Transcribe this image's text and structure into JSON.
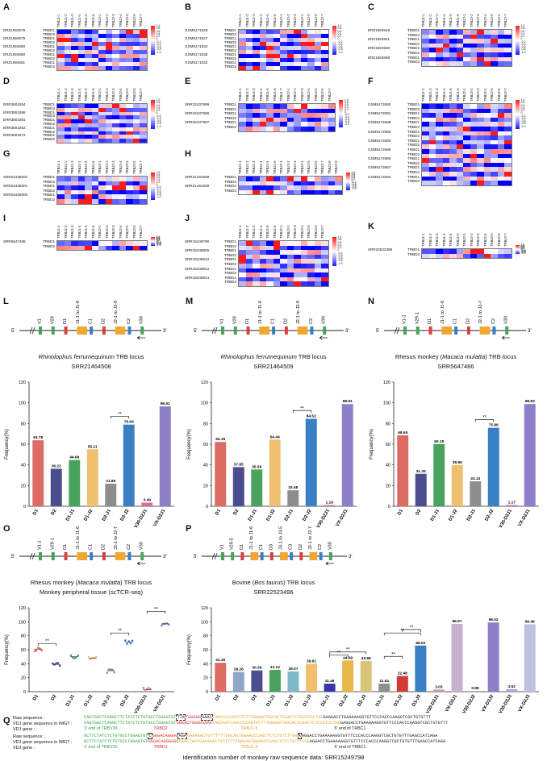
{
  "heatmaps": [
    {
      "id": "A",
      "samples": [
        "ERZ1694578",
        "ERZ1694579",
        "ERZ1694580",
        "ERZ1694580",
        "ERZ1694581"
      ],
      "columns": [
        "TRBJ1-1",
        "TRBJ1-2",
        "TRBJ1-3",
        "TRBJ1-4",
        "TRBJ1-5",
        "TRBJ1-6",
        "TRBJ2-1",
        "TRBJ2-2",
        "TRBJ2-3",
        "TRBJ2-4",
        "TRBJ2-5",
        "TRBJ2-6",
        "TRBJ2-7"
      ]
    },
    {
      "id": "B",
      "samples": [
        "GSM5171626",
        "GSM5171627",
        "GSM5171634",
        "GSM5171635",
        "GSM5171642"
      ],
      "columns": [
        "TRBJ1-1",
        "TRBJ1-2",
        "TRBJ1-3",
        "TRBJ1-4",
        "TRBJ1-5",
        "TRBJ1-6",
        "TRBJ2-1",
        "TRBJ2-2",
        "TRBJ2-3",
        "TRBJ2-4",
        "TRBJ2-5",
        "TRBJ2-6",
        "TRBJ2-7"
      ]
    },
    {
      "id": "C",
      "samples": [
        "ERZ1694549",
        "ERZ1694551",
        "ERZ1694560",
        "ERZ1694569"
      ],
      "columns": [
        "TRBJ1-1",
        "TRBJ1-2",
        "TRBJ1-3",
        "TRBJ1-4",
        "TRBJ1-5",
        "TRBJ1-6",
        "TRBJ2-1",
        "TRBJ2-2",
        "TRBJ2-3",
        "TRBJ2-4",
        "TRBJ2-5",
        "TRBJ2-6",
        "TRBJ2-7"
      ]
    },
    {
      "id": "D",
      "samples": [
        "ERR3804264",
        "ERR3804268",
        "ERR3804281",
        "ERR3804262",
        "ERR3804272"
      ],
      "columns": [
        "TRBJ1-1",
        "TRBJ1-2",
        "TRBJ1-3",
        "TRBJ1-4",
        "TRBJ1-5",
        "TRBJ1-6",
        "TRBJ2-1",
        "TRBJ2-2",
        "TRBJ2-3",
        "TRBJ2-4",
        "TRBJ2-5",
        "TRBJ2-6",
        "TRBJ2-7"
      ]
    },
    {
      "id": "E",
      "samples": [
        "SRR22437999",
        "SRR22437998",
        "SRR22437997"
      ],
      "columns": [
        "TRBJ1-1",
        "TRBJ1-2",
        "TRBJ1-3",
        "TRBJ1-4",
        "TRBJ1-5",
        "TRBJ1-6",
        "TRBJ1-7",
        "TRBJ2-1",
        "TRBJ2-2",
        "TRBJ2-3",
        "TRBJ2-4",
        "TRBJ2-5",
        "TRBJ2-6",
        "TRBJ2-7"
      ]
    },
    {
      "id": "F",
      "samples": [
        "GSM5172690",
        "GSM5172691",
        "GSM5172689",
        "GSM5172688",
        "GSM5172689",
        "GSM5172696",
        "GSM5172686",
        "GSM5172687",
        "GSM5172694"
      ],
      "columns": [
        "TRBJ1-1",
        "TRBJ1-2",
        "TRBJ1-3",
        "TRBJ1-4",
        "TRBJ1-5",
        "TRBJ1-6",
        "TRBJ2-1",
        "TRBJ2-2",
        "TRBJ2-3",
        "TRBJ2-4",
        "TRBJ2-5",
        "TRBJ2-6",
        "TRBJ2-7"
      ]
    },
    {
      "id": "G",
      "samples": [
        "SRR22438002",
        "SRR22438001",
        "SRR22438000"
      ],
      "columns": [
        "TRBJ1-1",
        "TRBJ1-2",
        "TRBJ1-3",
        "TRBJ1-4",
        "TRBJ1-5",
        "TRBJ1-6",
        "TRBJ2-1",
        "TRBJ2-2",
        "TRBJ2-3",
        "TRBJ2-4",
        "TRBJ2-5",
        "TRBJ2-6",
        "TRBJ2-7"
      ]
    },
    {
      "id": "H",
      "samples": [
        "SRR21464508",
        "SRR21464509"
      ],
      "columns": [
        "TRBJ1-1",
        "TRBJ1-2",
        "TRBJ1-3",
        "TRBJ1-4",
        "TRBJ1-5",
        "TRBJ1-6",
        "TRBJ2-1",
        "TRBJ2-2",
        "TRBJ2-3",
        "TRBJ2-4",
        "TRBJ2-5",
        "TRBJ2-6",
        "TRBJ2-7",
        "TRBJ2-8",
        "TRBJ2-9"
      ]
    },
    {
      "id": "I",
      "samples": [
        "SRR5647486"
      ],
      "columns": [
        "TRBJ1-1",
        "TRBJ1-2",
        "TRBJ1-3",
        "TRBJ1-4",
        "TRBJ1-5",
        "TRBJ1-6",
        "TRBJ2-1",
        "TRBJ2-2",
        "TRBJ2-3",
        "TRBJ2-4",
        "TRBJ2-5",
        "TRBJ2-6",
        "TRBJ2-7"
      ]
    },
    {
      "id": "J",
      "samples": [
        "SRR15249798",
        "SRR15249806",
        "SRR15249810",
        "SRR15249812",
        "SRR15249814"
      ],
      "columns": [
        "TRBJ1-1",
        "TRBJ1-2",
        "TRBJ1-3",
        "TRBJ1-4",
        "TRBJ1-5",
        "TRBJ1-6",
        "TRBJ2-1",
        "TRBJ2-2",
        "TRBJ2-3",
        "TRBJ2-4",
        "TRBJ2-5",
        "TRBJ2-6",
        "TRBJ2-7"
      ]
    },
    {
      "id": "K",
      "samples": [
        "SRR22523496"
      ],
      "columns": [
        "TRBJ1-1",
        "TRBJ1-2",
        "TRBJ1-3",
        "TRBJ1-4",
        "TRBJ1-5",
        "TRBJ1-6",
        "TRBJ2-1",
        "TRBJ2-2",
        "TRBJ2-3",
        "TRBJ2-4",
        "TRBJ2-5",
        "TRBJ2-6",
        "TRBJ2-7"
      ]
    }
  ],
  "colorbar_ticks": [
    "1.0",
    "0.8",
    "0.6",
    "0.4",
    "0.2",
    "0",
    "-0.2",
    "-0.4",
    "-0.6",
    "-0.8",
    "-1.0"
  ],
  "panels": {
    "L": {
      "species": "Rhinolophus ferrumequinum",
      "suffix": "TRB locus",
      "sample": "SRR21464508",
      "locus": [
        "V1",
        "V29",
        "D1",
        "J1-1 to J1-6",
        "C1",
        "D2",
        "J2-1 to J2-9",
        "C2",
        "V30"
      ]
    },
    "M": {
      "species": "Rhinolophus ferrumequinum",
      "suffix": "TRB locus",
      "sample": "SRR21464509",
      "locus": [
        "V1",
        "V29",
        "D1",
        "J1-1 to J1-6",
        "C1",
        "D2",
        "J2-1 to J2-9",
        "C2",
        "V30"
      ]
    },
    "N": {
      "prefix": "Rhesus monkey (",
      "species": "Macaca mulatta",
      "suffix": ") TRB locus",
      "sample": "SRR5647486",
      "locus": [
        "V1-1",
        "V29-1",
        "D1",
        "J1-1 to J1-6",
        "C1",
        "D2",
        "J2-1 to J2-7",
        "C2",
        "V30"
      ]
    },
    "O": {
      "prefix": "Rhesus monkey (",
      "species": "Macaca mulatta",
      "suffix": ") TRB locus",
      "sample": "Monkey peripheral tissue (scTCR-seq)",
      "locus": [
        "V1-1",
        "V29-1",
        "D1",
        "J1-1 to J1-6",
        "C1",
        "D2",
        "J2-1 to J2-7",
        "C2",
        "V30"
      ]
    },
    "P": {
      "prefix": "Bovine (",
      "species": "Bos taurus",
      "suffix": ") TRB locus",
      "sample": "SRR22523496",
      "locus": [
        "V1",
        "V29-5",
        "D1",
        "J1-1 to J1-6",
        "C1",
        "D3",
        "J3-1 to J3-5",
        "C3",
        "D2",
        "J2-1 to J2-7",
        "C2",
        "V30"
      ]
    }
  },
  "chart_data": [
    {
      "id": "L",
      "type": "bar",
      "ylabel": "Frequency(%)",
      "ylim": [
        0,
        120
      ],
      "categories": [
        "D1",
        "D2",
        "D1-J1",
        "D1-J2",
        "D2-J1",
        "D2-J2",
        "V30-D2J1",
        "VX-D2J1"
      ],
      "values": [
        63.78,
        36.22,
        44.69,
        55.11,
        21.86,
        78.94,
        3.49,
        96.51
      ],
      "colors": [
        "#dd6b66",
        "#4a4e8e",
        "#4aa35c",
        "#f0c070",
        "#8e8e8e",
        "#3a7fc4",
        "#d66fa6",
        "#8e7fc8"
      ],
      "significance": [
        {
          "from": 4,
          "to": 5,
          "label": "**"
        }
      ]
    },
    {
      "id": "M",
      "type": "bar",
      "ylabel": "Frequency(%)",
      "ylim": [
        0,
        120
      ],
      "categories": [
        "D1",
        "D2",
        "D1-J1",
        "D1-J2",
        "D2-J1",
        "D2-J2",
        "V30-D2J1",
        "VX-D2J1"
      ],
      "values": [
        62.15,
        37.85,
        35.56,
        64.44,
        15.48,
        84.52,
        1.19,
        98.81
      ],
      "colors": [
        "#dd6b66",
        "#4a4e8e",
        "#4aa35c",
        "#f0c070",
        "#8e8e8e",
        "#3a7fc4",
        "#d66fa6",
        "#8e7fc8"
      ],
      "significance": [
        {
          "from": 4,
          "to": 5,
          "label": "**"
        }
      ]
    },
    {
      "id": "N",
      "type": "bar",
      "ylabel": "Frequency(%)",
      "ylim": [
        0,
        120
      ],
      "categories": [
        "D1",
        "D2",
        "D1-J1",
        "D1-J2",
        "D2-J1",
        "D2-J2",
        "V30-D2J1",
        "VX-D2J1"
      ],
      "values": [
        68.65,
        31.35,
        60.15,
        39.85,
        24.14,
        75.86,
        1.17,
        98.83
      ],
      "colors": [
        "#dd6b66",
        "#4a4e8e",
        "#4aa35c",
        "#f0c070",
        "#8e8e8e",
        "#3a7fc4",
        "#d66fa6",
        "#8e7fc8"
      ],
      "significance": [
        {
          "from": 4,
          "to": 5,
          "label": "**"
        }
      ]
    },
    {
      "id": "O",
      "type": "scatter",
      "ylabel": "Frequency(%)",
      "ylim": [
        0,
        120
      ],
      "categories": [
        "D1",
        "D2",
        "D1-J1",
        "D1-J2",
        "D2-J1",
        "D2-J2",
        "V30-D2J1",
        "VX-D2J1"
      ],
      "means": [
        61,
        39,
        50,
        48,
        30,
        71,
        3,
        97
      ],
      "colors": [
        "#dd6b66",
        "#4a4e8e",
        "#4aa35c",
        "#f0c070",
        "#8e8e8e",
        "#3a7fc4",
        "#d66fa6",
        "#8e7fc8"
      ],
      "significance": [
        {
          "from": 0,
          "to": 1,
          "label": "**"
        },
        {
          "from": 4,
          "to": 5,
          "label": "**"
        },
        {
          "from": 6,
          "to": 7,
          "label": "**"
        }
      ]
    },
    {
      "id": "P",
      "type": "bar",
      "ylabel": "Frequency(%)",
      "ylim": [
        0,
        120
      ],
      "categories": [
        "D1",
        "D2",
        "D3",
        "D1-J1",
        "D1-J2",
        "D1-J3",
        "D2-J1",
        "D2-J2",
        "D2-J3",
        "D3-J1",
        "D3-J2",
        "D3-J3",
        "V30-D2J1",
        "VX-D2J1",
        "V30-D2J2",
        "VX-D2J2",
        "V30-D2J3",
        "VX-D2J3"
      ],
      "values": [
        41.35,
        28.26,
        30.39,
        31.12,
        29.07,
        39.81,
        11.46,
        44.69,
        43.86,
        11.51,
        22.48,
        66.02,
        3.03,
        96.97,
        0.98,
        99.02,
        3.52,
        96.48
      ],
      "colors": [
        "#dd6b66",
        "#8fa6c8",
        "#4a4e8e",
        "#4aa35c",
        "#7db9c9",
        "#f0c070",
        "#3a35a8",
        "#e8b84a",
        "#d9c57a",
        "#8e8e8e",
        "#d43a3a",
        "#3a7fc4",
        "#b8a0b8",
        "#c8b0d0",
        "#a0a0c8",
        "#8e7fc8",
        "#b0a8d0",
        "#c0c0e0"
      ],
      "significance": [
        {
          "from": 6,
          "to": 7,
          "label": "**"
        },
        {
          "from": 6,
          "to": 8,
          "label": "**"
        },
        {
          "from": 9,
          "to": 11,
          "label": "**"
        },
        {
          "from": 10,
          "to": 11,
          "label": "**"
        },
        {
          "from": 9,
          "to": 10,
          "label": "**"
        }
      ]
    }
  ],
  "panel_q": {
    "rows": [
      {
        "label": "Raw sequence :",
        "green": "CAGTGACTCAGGCTTCTATCTCTGTGCCTGGAGTGT",
        "box1": "TTA",
        "red": "TGGGGG",
        "box2": "AAAC",
        "orange": "CAGCCCCAGTATTTTGGAGATGGCACTCGACTCTCCGTCCTAG",
        "rest": "GAGGACCTGAAAAAGGTGTTCCCACCCAAGGTCGCTGTGTTT"
      },
      {
        "label": "VDJ gene sequence in IMGT :",
        "green": "CAGTGACTCAGGCTTCTATCTCTGTGCCTGGAGTGT",
        "red": "GGGACTGGGGGAAG",
        "orange": "TAGCAATCAGCCCCAGTATTTTGGAGATGGCACTCGACTCTCCGTCCTAG",
        "rest": "GAGGACCTGAAAAAGGTGTTCCCACCCAAGGTCGCTGTGTTT"
      },
      {
        "label": "VDJ gene :",
        "g1": "3' end of TRBV30",
        "g2": "TRBD2",
        "g3": "TRBJ1-5",
        "g4": "5' end of TRBC1"
      },
      {
        "label": "Raw sequence :",
        "green": "GCTTCTATCTCTGTGCCTGGAGTGT",
        "box1": "C",
        "red": "GGGACAGGGG",
        "box2": "AGA",
        "orange": "GAAAAACTGTTTTTTGGCAGTGGAACCCAGCTCTCTGTCTTGG",
        "box3": "A",
        "rest": "AGGACCTGAAAAAGGTGTTTCCCACCCAAGGTCGCTGTGTTTGAGCCATCAGA"
      },
      {
        "label": "VDJ gene sequence in IMGT :",
        "green": "GCTTCTATCTCTGTGCCTGGAGTGT",
        "red": "GGGACAGGGGGC",
        "orange": "CAACTAATGAAAAACTGTTTTTTGGCAGTGGAACCCAGCTCTCTGTCTTGG",
        "rest": "AGGACCTGAAAAAGGTGTTTCCCACCCAAGGTCGCTGTGTTTGAGCCATCAGA"
      },
      {
        "label": "VDJ gene :",
        "g1": "3' end of TRBV30",
        "g2": "TRBD1",
        "g3": "TRBJ1-4",
        "g4": "5' end of TRBC1"
      }
    ],
    "caption": "Identification number of monkey raw sequence data: SRR15249798"
  }
}
